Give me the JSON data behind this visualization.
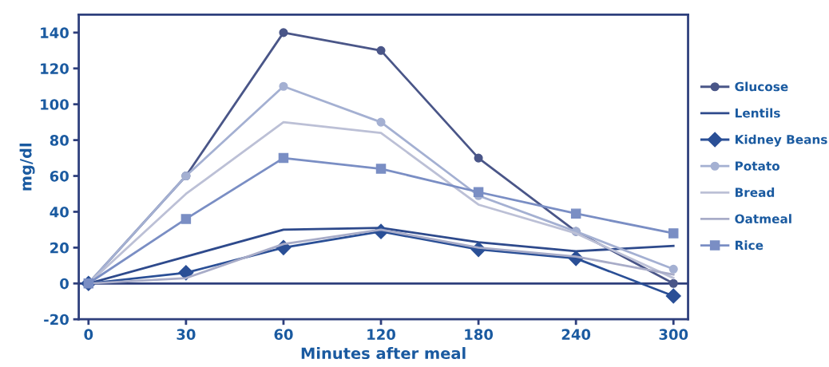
{
  "chart_data": {
    "type": "line",
    "xlabel": "Minutes after meal",
    "ylabel": "mg/dl",
    "categories": [
      "0",
      "30",
      "60",
      "120",
      "180",
      "240",
      "300"
    ],
    "ylim": [
      -20,
      150
    ],
    "yticks": [
      -20,
      0,
      20,
      40,
      60,
      80,
      100,
      120,
      140
    ],
    "grid": false,
    "legend": "right",
    "line_style": "solid",
    "ref_lines": [
      {
        "axis": "y",
        "value": 0,
        "color": "#2e3f7c"
      }
    ],
    "series": [
      {
        "name": "Glucose",
        "color": "#4a5688",
        "marker": "circle",
        "values": [
          0,
          60,
          140,
          130,
          70,
          29,
          0
        ]
      },
      {
        "name": "Lentils",
        "color": "#2e4a8c",
        "marker": "none",
        "values": [
          0,
          15,
          30,
          31,
          23,
          18,
          21
        ]
      },
      {
        "name": "Kidney Beans",
        "color": "#2a4f96",
        "marker": "diamond",
        "values": [
          0,
          6,
          20,
          29,
          19,
          14,
          -7
        ]
      },
      {
        "name": "Potato",
        "color": "#a4b0d2",
        "marker": "circle",
        "values": [
          0,
          60,
          110,
          90,
          49,
          29,
          8
        ]
      },
      {
        "name": "Bread",
        "color": "#bcc0d6",
        "marker": "none",
        "values": [
          0,
          50,
          90,
          84,
          44,
          28,
          3
        ]
      },
      {
        "name": "Oatmeal",
        "color": "#a8acc8",
        "marker": "none",
        "values": [
          0,
          3,
          22,
          30,
          20,
          15,
          5
        ]
      },
      {
        "name": "Rice",
        "color": "#7a8ec4",
        "marker": "square",
        "values": [
          0,
          36,
          70,
          64,
          51,
          39,
          28
        ]
      }
    ]
  }
}
